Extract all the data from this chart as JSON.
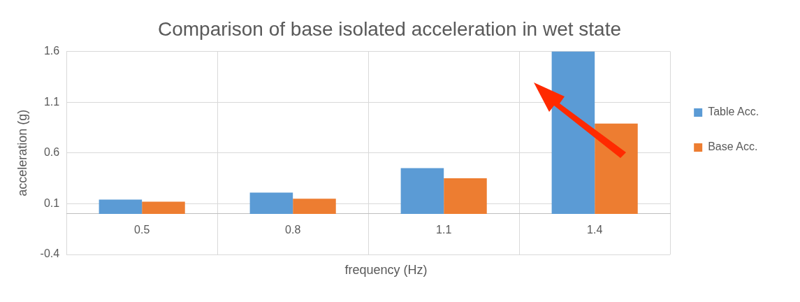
{
  "chart_data": {
    "type": "bar",
    "title": "Comparison of base isolated acceleration in wet state",
    "xlabel": "frequency (Hz)",
    "ylabel": "acceleration (g)",
    "categories": [
      "0.5",
      "0.8",
      "1.1",
      "1.4"
    ],
    "series": [
      {
        "name": "Table Acc.",
        "color": "#5b9bd5",
        "values": [
          0.14,
          0.21,
          0.45,
          1.6
        ]
      },
      {
        "name": "Base Acc.",
        "color": "#ed7d31",
        "values": [
          0.12,
          0.15,
          0.35,
          0.89
        ]
      }
    ],
    "ylim": [
      -0.4,
      1.6
    ],
    "yticks": [
      -0.4,
      0.1,
      0.6,
      1.1,
      1.6
    ],
    "grid": true,
    "legend": "right"
  }
}
